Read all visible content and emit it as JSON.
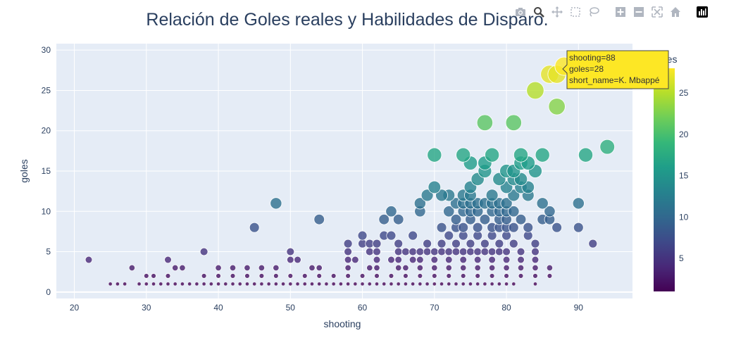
{
  "title": "Relación de Goles reales y Habilidades de Disparo.",
  "modebar": {
    "icons": [
      "camera-icon",
      "zoom-icon",
      "pan-icon",
      "box-select-icon",
      "lasso-select-icon",
      "zoom-in-icon",
      "zoom-out-icon",
      "autoscale-icon",
      "reset-axes-icon",
      "plotly-logo-icon"
    ]
  },
  "colors": {
    "plot_bg": "#e5ecf6",
    "grid": "#ffffff",
    "text": "#2a3f5f",
    "tooltip_bg": "#fde725",
    "tooltip_border": "#444444"
  },
  "tooltip": {
    "line1": "shooting=88",
    "line2": "goles=28",
    "line3": "short_name=K. Mbappé"
  },
  "colorbar": {
    "title": "goles",
    "range": [
      1,
      28
    ],
    "ticks": [
      5,
      10,
      15,
      20,
      25
    ],
    "colorscale": "viridis"
  },
  "chart_data": {
    "type": "scatter",
    "title": "Relación de Goles reales y Habilidades de Disparo.",
    "xlabel": "shooting",
    "ylabel": "goles",
    "xlim": [
      17.5,
      97.5
    ],
    "ylim": [
      -0.8,
      30.8
    ],
    "xticks": [
      20,
      30,
      40,
      50,
      60,
      70,
      80,
      90
    ],
    "yticks": [
      0,
      5,
      10,
      15,
      20,
      25,
      30
    ],
    "size_and_color_by": "goles",
    "grid": true,
    "hover_point": {
      "x": 88,
      "y": 28
    },
    "points": [
      [
        88,
        28
      ],
      [
        86,
        27
      ],
      [
        87,
        27
      ],
      [
        84,
        25
      ],
      [
        87,
        23
      ],
      [
        77,
        21
      ],
      [
        81,
        21
      ],
      [
        94,
        18
      ],
      [
        70,
        17
      ],
      [
        74,
        17
      ],
      [
        78,
        17
      ],
      [
        82,
        17
      ],
      [
        85,
        17
      ],
      [
        91,
        17
      ],
      [
        75,
        16
      ],
      [
        77,
        16
      ],
      [
        80,
        15
      ],
      [
        81,
        15
      ],
      [
        82,
        16
      ],
      [
        83,
        16
      ],
      [
        84,
        15
      ],
      [
        77,
        15
      ],
      [
        76,
        14
      ],
      [
        79,
        14
      ],
      [
        81,
        14
      ],
      [
        82,
        14
      ],
      [
        75,
        13
      ],
      [
        80,
        13
      ],
      [
        82,
        13
      ],
      [
        83,
        13
      ],
      [
        70,
        13
      ],
      [
        69,
        12
      ],
      [
        72,
        12
      ],
      [
        74,
        12
      ],
      [
        75,
        12
      ],
      [
        78,
        12
      ],
      [
        81,
        12
      ],
      [
        83,
        12
      ],
      [
        71,
        12
      ],
      [
        48,
        11
      ],
      [
        68,
        11
      ],
      [
        73,
        11
      ],
      [
        74,
        11
      ],
      [
        75,
        11
      ],
      [
        76,
        11
      ],
      [
        77,
        11
      ],
      [
        78,
        11
      ],
      [
        79,
        11
      ],
      [
        80,
        11
      ],
      [
        85,
        11
      ],
      [
        90,
        11
      ],
      [
        64,
        10
      ],
      [
        68,
        10
      ],
      [
        72,
        10
      ],
      [
        74,
        10
      ],
      [
        75,
        10
      ],
      [
        76,
        10
      ],
      [
        78,
        10
      ],
      [
        79,
        10
      ],
      [
        80,
        10
      ],
      [
        81,
        10
      ],
      [
        86,
        10
      ],
      [
        54,
        9
      ],
      [
        63,
        9
      ],
      [
        65,
        9
      ],
      [
        73,
        9
      ],
      [
        75,
        9
      ],
      [
        77,
        9
      ],
      [
        79,
        9
      ],
      [
        80,
        9
      ],
      [
        82,
        9
      ],
      [
        85,
        9
      ],
      [
        86,
        9
      ],
      [
        45,
        8
      ],
      [
        71,
        8
      ],
      [
        73,
        8
      ],
      [
        74,
        8
      ],
      [
        76,
        8
      ],
      [
        78,
        8
      ],
      [
        79,
        8
      ],
      [
        80,
        8
      ],
      [
        81,
        8
      ],
      [
        83,
        8
      ],
      [
        87,
        8
      ],
      [
        90,
        8
      ],
      [
        60,
        7
      ],
      [
        63,
        7
      ],
      [
        64,
        7
      ],
      [
        67,
        7
      ],
      [
        72,
        7
      ],
      [
        74,
        7
      ],
      [
        76,
        7
      ],
      [
        78,
        7
      ],
      [
        80,
        7
      ],
      [
        83,
        7
      ],
      [
        58,
        6
      ],
      [
        60,
        6
      ],
      [
        61,
        6
      ],
      [
        62,
        6
      ],
      [
        65,
        6
      ],
      [
        69,
        6
      ],
      [
        71,
        6
      ],
      [
        73,
        6
      ],
      [
        75,
        6
      ],
      [
        77,
        6
      ],
      [
        79,
        6
      ],
      [
        81,
        6
      ],
      [
        84,
        6
      ],
      [
        92,
        6
      ],
      [
        38,
        5
      ],
      [
        50,
        5
      ],
      [
        58,
        5
      ],
      [
        61,
        5
      ],
      [
        62,
        5
      ],
      [
        65,
        5
      ],
      [
        66,
        5
      ],
      [
        67,
        5
      ],
      [
        68,
        5
      ],
      [
        69,
        5
      ],
      [
        70,
        5
      ],
      [
        71,
        5
      ],
      [
        72,
        5
      ],
      [
        73,
        5
      ],
      [
        74,
        5
      ],
      [
        75,
        5
      ],
      [
        76,
        5
      ],
      [
        77,
        5
      ],
      [
        78,
        5
      ],
      [
        79,
        5
      ],
      [
        80,
        5
      ],
      [
        82,
        5
      ],
      [
        84,
        5
      ],
      [
        22,
        4
      ],
      [
        33,
        4
      ],
      [
        50,
        4
      ],
      [
        51,
        4
      ],
      [
        58,
        4
      ],
      [
        59,
        4
      ],
      [
        62,
        4
      ],
      [
        64,
        4
      ],
      [
        65,
        4
      ],
      [
        67,
        4
      ],
      [
        68,
        4
      ],
      [
        70,
        4
      ],
      [
        72,
        4
      ],
      [
        74,
        4
      ],
      [
        76,
        4
      ],
      [
        78,
        4
      ],
      [
        80,
        4
      ],
      [
        82,
        4
      ],
      [
        84,
        4
      ],
      [
        28,
        3
      ],
      [
        34,
        3
      ],
      [
        35,
        3
      ],
      [
        40,
        3
      ],
      [
        42,
        3
      ],
      [
        44,
        3
      ],
      [
        46,
        3
      ],
      [
        48,
        3
      ],
      [
        53,
        3
      ],
      [
        54,
        3
      ],
      [
        58,
        3
      ],
      [
        61,
        3
      ],
      [
        62,
        3
      ],
      [
        65,
        3
      ],
      [
        66,
        3
      ],
      [
        68,
        3
      ],
      [
        70,
        3
      ],
      [
        72,
        3
      ],
      [
        74,
        3
      ],
      [
        76,
        3
      ],
      [
        78,
        3
      ],
      [
        80,
        3
      ],
      [
        82,
        3
      ],
      [
        84,
        3
      ],
      [
        86,
        3
      ],
      [
        30,
        2
      ],
      [
        31,
        2
      ],
      [
        33,
        2
      ],
      [
        38,
        2
      ],
      [
        40,
        2
      ],
      [
        42,
        2
      ],
      [
        44,
        2
      ],
      [
        46,
        2
      ],
      [
        48,
        2
      ],
      [
        50,
        2
      ],
      [
        52,
        2
      ],
      [
        54,
        2
      ],
      [
        56,
        2
      ],
      [
        58,
        2
      ],
      [
        60,
        2
      ],
      [
        62,
        2
      ],
      [
        64,
        2
      ],
      [
        66,
        2
      ],
      [
        68,
        2
      ],
      [
        70,
        2
      ],
      [
        72,
        2
      ],
      [
        74,
        2
      ],
      [
        76,
        2
      ],
      [
        78,
        2
      ],
      [
        80,
        2
      ],
      [
        82,
        2
      ],
      [
        84,
        2
      ],
      [
        86,
        2
      ],
      [
        25,
        1
      ],
      [
        26,
        1
      ],
      [
        27,
        1
      ],
      [
        29,
        1
      ],
      [
        30,
        1
      ],
      [
        31,
        1
      ],
      [
        32,
        1
      ],
      [
        33,
        1
      ],
      [
        34,
        1
      ],
      [
        35,
        1
      ],
      [
        36,
        1
      ],
      [
        37,
        1
      ],
      [
        38,
        1
      ],
      [
        39,
        1
      ],
      [
        40,
        1
      ],
      [
        41,
        1
      ],
      [
        42,
        1
      ],
      [
        43,
        1
      ],
      [
        44,
        1
      ],
      [
        45,
        1
      ],
      [
        46,
        1
      ],
      [
        47,
        1
      ],
      [
        48,
        1
      ],
      [
        49,
        1
      ],
      [
        50,
        1
      ],
      [
        51,
        1
      ],
      [
        52,
        1
      ],
      [
        53,
        1
      ],
      [
        54,
        1
      ],
      [
        55,
        1
      ],
      [
        56,
        1
      ],
      [
        57,
        1
      ],
      [
        58,
        1
      ],
      [
        59,
        1
      ],
      [
        60,
        1
      ],
      [
        61,
        1
      ],
      [
        62,
        1
      ],
      [
        63,
        1
      ],
      [
        64,
        1
      ],
      [
        65,
        1
      ],
      [
        66,
        1
      ],
      [
        67,
        1
      ],
      [
        68,
        1
      ],
      [
        69,
        1
      ],
      [
        70,
        1
      ],
      [
        71,
        1
      ],
      [
        72,
        1
      ],
      [
        73,
        1
      ],
      [
        74,
        1
      ],
      [
        75,
        1
      ],
      [
        76,
        1
      ],
      [
        77,
        1
      ],
      [
        78,
        1
      ],
      [
        79,
        1
      ],
      [
        80,
        1
      ],
      [
        81,
        1
      ],
      [
        84,
        1
      ]
    ]
  }
}
